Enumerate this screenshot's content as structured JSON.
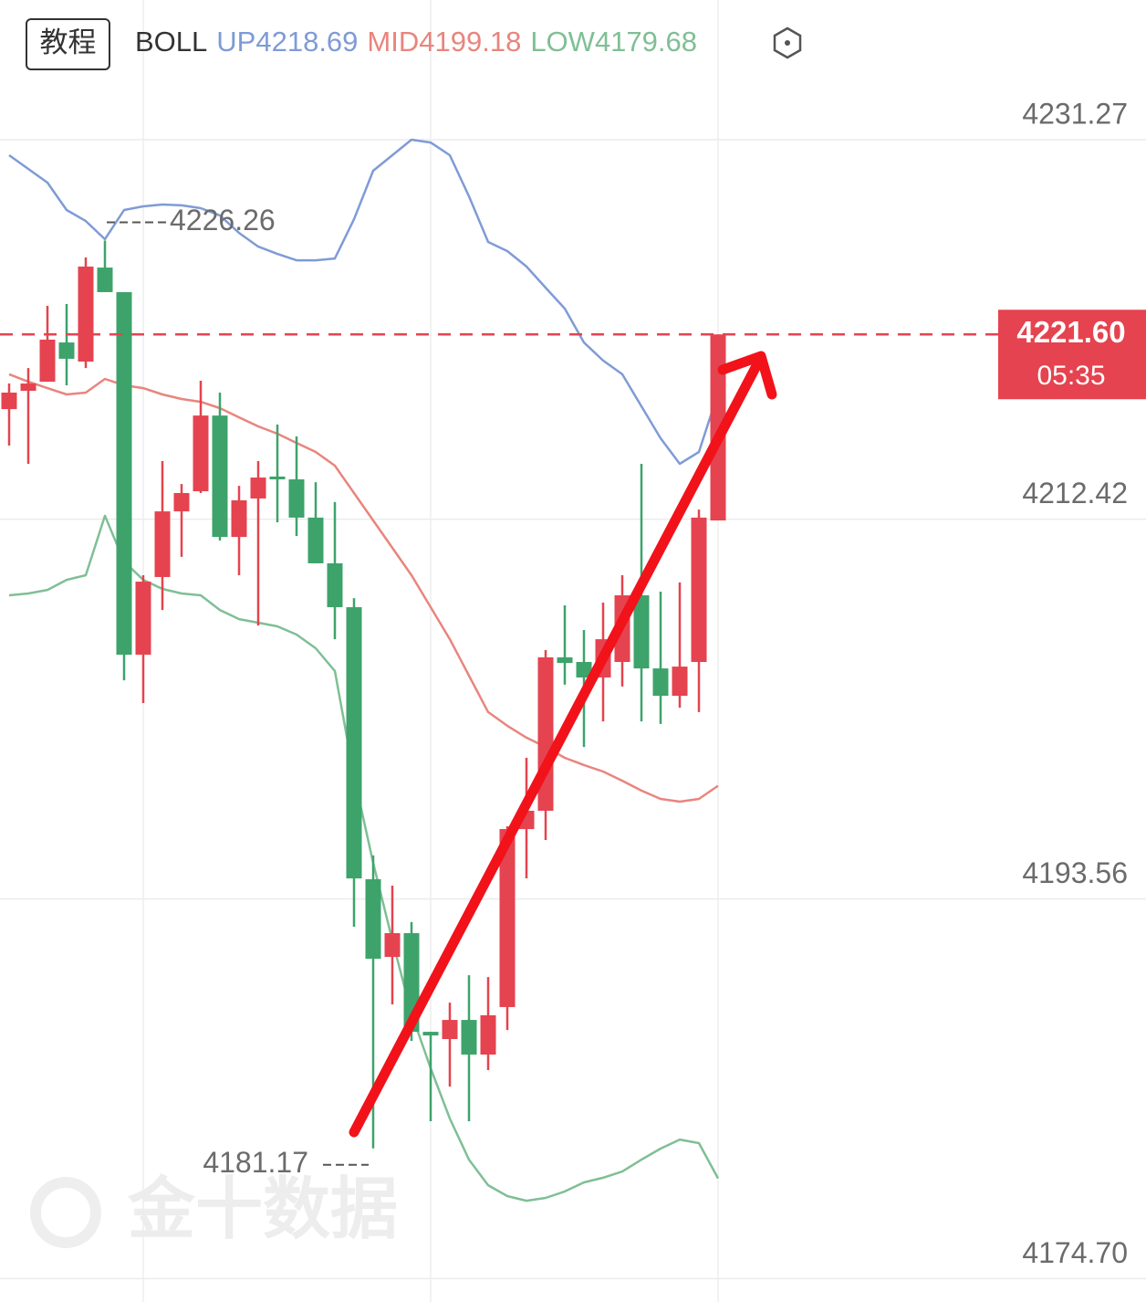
{
  "chart_data": {
    "type": "candlestick",
    "button": "教程",
    "indicator": "BOLL",
    "ylim": [
      4173.54,
      4238.21
    ],
    "yticks": [
      4231.27,
      4212.42,
      4193.56,
      {
        "value": 4174.7,
        "label": "4174.70"
      }
    ],
    "grid": true,
    "up_color": "#e5434f",
    "down_color": "#3da36b",
    "ohlc": [
      [
        4217.89,
        4219.16,
        4216.08,
        4218.71
      ],
      [
        4218.8,
        4219.93,
        4215.17,
        4219.16
      ],
      [
        4219.25,
        4223.02,
        4219.25,
        4221.34
      ],
      [
        4221.2,
        4223.11,
        4219.07,
        4220.39
      ],
      [
        4220.25,
        4225.42,
        4219.93,
        4224.97
      ],
      [
        4224.92,
        4226.26,
        4223.7,
        4223.7
      ],
      [
        4223.7,
        4223.7,
        4204.42,
        4205.69
      ],
      [
        4205.69,
        4209.64,
        4203.29,
        4209.32
      ],
      [
        4209.55,
        4215.31,
        4207.91,
        4212.81
      ],
      [
        4212.81,
        4214.17,
        4210.55,
        4213.72
      ],
      [
        4213.81,
        4219.3,
        4213.72,
        4217.57
      ],
      [
        4217.57,
        4218.71,
        4211.36,
        4211.54
      ],
      [
        4211.54,
        4214.08,
        4209.64,
        4213.36
      ],
      [
        4213.45,
        4215.31,
        4207.14,
        4214.49
      ],
      [
        4214.54,
        4217.12,
        4212.27,
        4214.4
      ],
      [
        4214.4,
        4216.53,
        4211.59,
        4212.5
      ],
      [
        4212.5,
        4214.26,
        4210.23,
        4210.23
      ],
      [
        4210.23,
        4213.27,
        4206.46,
        4208.05
      ],
      [
        4208.05,
        4208.5,
        4192.18,
        4194.58
      ],
      [
        4194.54,
        4195.72,
        4181.17,
        4190.59
      ],
      [
        4190.68,
        4194.22,
        4188.32,
        4191.86
      ],
      [
        4191.86,
        4192.41,
        4186.51,
        4186.96
      ],
      [
        4186.96,
        4186.96,
        4182.52,
        4186.78
      ],
      [
        4186.6,
        4188.41,
        4184.24,
        4187.55
      ],
      [
        4187.55,
        4189.77,
        4182.52,
        4185.83
      ],
      [
        4185.83,
        4189.68,
        4185.06,
        4187.78
      ],
      [
        4188.19,
        4197.17,
        4187.05,
        4197.03
      ],
      [
        4197.03,
        4200.57,
        4194.58,
        4197.94
      ],
      [
        4197.94,
        4205.92,
        4196.49,
        4205.56
      ],
      [
        4205.56,
        4208.14,
        4204.2,
        4205.28
      ],
      [
        4205.33,
        4206.92,
        4201.11,
        4204.56
      ],
      [
        4204.56,
        4208.28,
        4202.38,
        4206.46
      ],
      [
        4205.33,
        4209.64,
        4204.11,
        4208.64
      ],
      [
        4208.64,
        4215.17,
        4202.38,
        4205.01
      ],
      [
        4205.01,
        4208.82,
        4202.25,
        4203.65
      ],
      [
        4203.65,
        4209.28,
        4203.06,
        4205.1
      ],
      [
        4205.33,
        4212.9,
        4202.84,
        4212.5
      ],
      [
        4212.36,
        4221.6,
        4212.36,
        4221.6
      ]
    ],
    "series": [
      {
        "name": "UP",
        "color": "#7f9bd6",
        "values": [
          4230.5,
          4229.82,
          4229.14,
          4227.78,
          4227.23,
          4226.33,
          4227.78,
          4227.96,
          4228.05,
          4228.01,
          4227.87,
          4227.51,
          4226.64,
          4225.96,
          4225.6,
          4225.28,
          4225.28,
          4225.37,
          4227.32,
          4229.73,
          4230.5,
          4231.27,
          4231.13,
          4230.5,
          4228.46,
          4226.19,
          4225.74,
          4224.97,
          4223.92,
          4222.88,
          4221.2,
          4220.3,
          4219.62,
          4218.03,
          4216.44,
          4215.17,
          4215.76,
          4218.69
        ]
      },
      {
        "name": "MID",
        "color": "#e8857e",
        "values": [
          4219.62,
          4219.25,
          4218.93,
          4218.62,
          4218.71,
          4219.39,
          4219.07,
          4218.93,
          4218.62,
          4218.39,
          4218.25,
          4217.94,
          4217.48,
          4217.03,
          4216.67,
          4216.21,
          4215.76,
          4215.08,
          4213.72,
          4212.36,
          4211.0,
          4209.64,
          4208.05,
          4206.46,
          4204.65,
          4202.84,
          4202.16,
          4201.57,
          4201.11,
          4200.57,
          4200.21,
          4199.89,
          4199.43,
          4198.94,
          4198.53,
          4198.39,
          4198.53,
          4199.18
        ]
      },
      {
        "name": "LOW",
        "color": "#7fbf95",
        "values": [
          4208.64,
          4208.73,
          4208.91,
          4209.41,
          4209.64,
          4212.59,
          4210.32,
          4209.41,
          4208.96,
          4208.73,
          4208.64,
          4207.91,
          4207.46,
          4207.28,
          4207.1,
          4206.69,
          4206.01,
          4204.88,
          4199.66,
          4195.35,
          4191.5,
          4187.87,
          4185.15,
          4182.65,
          4180.61,
          4179.34,
          4178.8,
          4178.57,
          4178.71,
          4179.03,
          4179.48,
          4179.71,
          4180.02,
          4180.61,
          4181.16,
          4181.61,
          4181.43,
          4179.68
        ]
      }
    ],
    "current_price": {
      "value": 4221.6,
      "label": "4221.60"
    },
    "countdown": "05:35",
    "high_marker": 4226.26,
    "low_marker": 4181.17,
    "watermark": "金十数据"
  }
}
